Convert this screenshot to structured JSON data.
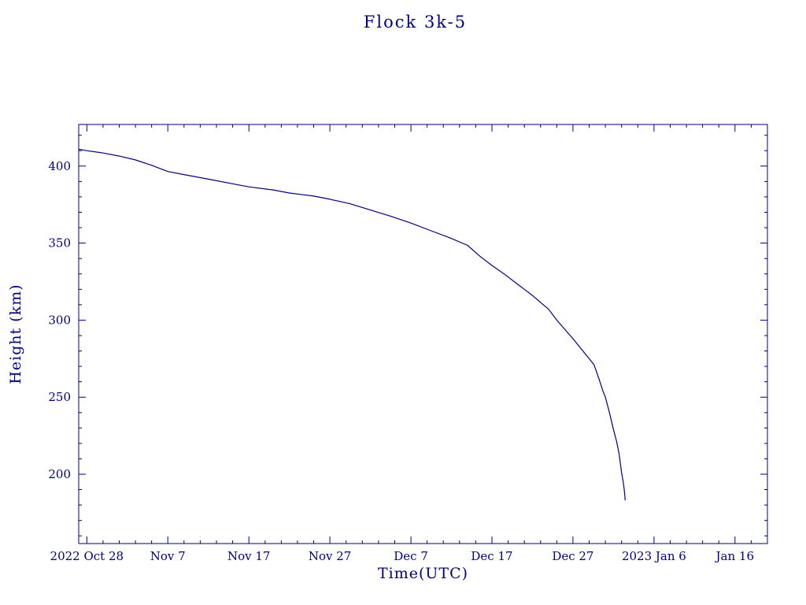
{
  "labels": {
    "title": "Flock 3k-5",
    "xlabel": "Time(UTC)",
    "ylabel": "Height (km)"
  },
  "chart_data": {
    "type": "line",
    "title": "Flock 3k-5",
    "xlabel": "Time(UTC)",
    "ylabel": "Height (km)",
    "line_color": "#000080",
    "axis_color": "#000080",
    "background": "#ffffff",
    "grid": false,
    "legend": "none",
    "x_domain_days": [
      0,
      85
    ],
    "x_domain_note": "days since 2022 Oct 27 (left edge) to 2023 Jan 20 (right edge)",
    "ylim": [
      155,
      427
    ],
    "x_ticks": [
      {
        "day": 1,
        "label": "2022 Oct 28"
      },
      {
        "day": 11,
        "label": "Nov 7"
      },
      {
        "day": 21,
        "label": "Nov 17"
      },
      {
        "day": 31,
        "label": "Nov 27"
      },
      {
        "day": 41,
        "label": "Dec 7"
      },
      {
        "day": 51,
        "label": "Dec 17"
      },
      {
        "day": 61,
        "label": "Dec 27"
      },
      {
        "day": 71,
        "label": "2023 Jan 6"
      },
      {
        "day": 81,
        "label": "Jan 16"
      }
    ],
    "x_minor_step_days": 2,
    "y_ticks": [
      200,
      250,
      300,
      350,
      400
    ],
    "y_minor_step": 10,
    "series": [
      {
        "name": "orbital-height-km",
        "points": [
          [
            0,
            411
          ],
          [
            1,
            410
          ],
          [
            3,
            408.5
          ],
          [
            5,
            406.5
          ],
          [
            7,
            404
          ],
          [
            9,
            400.5
          ],
          [
            11,
            396.5
          ],
          [
            13,
            394.5
          ],
          [
            16,
            391.5
          ],
          [
            19,
            388.5
          ],
          [
            21,
            386.5
          ],
          [
            24,
            384.5
          ],
          [
            26,
            382.5
          ],
          [
            29,
            380.5
          ],
          [
            31,
            378.5
          ],
          [
            33.5,
            375.5
          ],
          [
            36,
            371.5
          ],
          [
            38.5,
            367.5
          ],
          [
            41,
            363
          ],
          [
            43.5,
            358
          ],
          [
            46,
            353
          ],
          [
            48,
            348.5
          ],
          [
            49.5,
            341.5
          ],
          [
            51,
            335.5
          ],
          [
            52.5,
            330
          ],
          [
            54,
            324
          ],
          [
            55,
            320
          ],
          [
            56,
            316
          ],
          [
            57,
            311.5
          ],
          [
            58,
            307
          ],
          [
            59,
            300
          ],
          [
            60,
            294
          ],
          [
            61,
            288
          ],
          [
            62,
            281.5
          ],
          [
            63,
            275
          ],
          [
            63.6,
            271
          ],
          [
            64.2,
            262
          ],
          [
            64.7,
            254
          ],
          [
            65,
            250
          ],
          [
            65.5,
            240
          ],
          [
            66,
            229
          ],
          [
            66.4,
            221
          ],
          [
            66.7,
            213
          ],
          [
            67,
            201
          ],
          [
            67.2,
            195
          ],
          [
            67.35,
            189
          ],
          [
            67.45,
            183
          ]
        ]
      }
    ]
  }
}
